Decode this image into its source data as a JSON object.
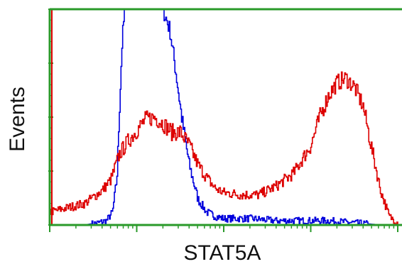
{
  "chart_data": {
    "type": "line",
    "title": "",
    "xlabel": "STAT5A",
    "ylabel": "Events",
    "x_scale": "log",
    "xlim": [
      0,
      4
    ],
    "ylim": [
      0,
      100
    ],
    "grid": false,
    "legend": "none",
    "series": [
      {
        "color": "#0000dd",
        "x": [
          0.0,
          0.2,
          0.4,
          0.55,
          0.65,
          0.72,
          0.77,
          0.8,
          0.83,
          0.86,
          0.9,
          0.95,
          1.0,
          1.08,
          1.16,
          1.24,
          1.3,
          1.38,
          1.45,
          1.52,
          1.6,
          1.7,
          1.8,
          1.9,
          2.0,
          2.3,
          2.6,
          2.9,
          3.2,
          3.5,
          3.8,
          4.0
        ],
        "y": [
          0,
          0,
          0,
          1,
          2,
          6,
          22,
          55,
          85,
          100,
          100,
          100,
          100,
          100,
          100,
          100,
          100,
          90,
          70,
          48,
          28,
          12,
          6,
          4,
          3,
          3,
          2,
          2,
          2,
          1,
          0,
          0
        ]
      },
      {
        "color": "#dd0000",
        "x": [
          0.0,
          0.2,
          0.4,
          0.6,
          0.7,
          0.8,
          0.9,
          1.0,
          1.1,
          1.2,
          1.3,
          1.4,
          1.5,
          1.6,
          1.7,
          1.8,
          1.9,
          2.0,
          2.2,
          2.4,
          2.6,
          2.8,
          3.0,
          3.1,
          3.2,
          3.3,
          3.4,
          3.5,
          3.6,
          3.7,
          3.8,
          3.9,
          4.0
        ],
        "y": [
          6,
          8,
          10,
          16,
          21,
          33,
          39,
          44,
          49,
          50,
          47,
          43,
          43,
          37,
          28,
          22,
          17,
          15,
          14,
          14,
          18,
          24,
          37,
          50,
          60,
          66,
          68,
          64,
          55,
          35,
          16,
          4,
          1
        ]
      }
    ]
  }
}
